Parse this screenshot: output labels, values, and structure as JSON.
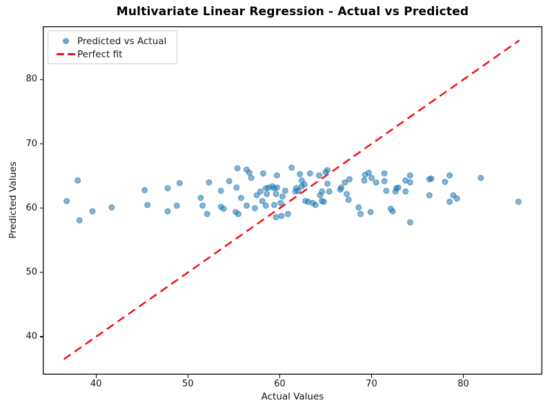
{
  "title": "Multivariate Linear Regression - Actual vs Predicted",
  "colors": {
    "scatter": "#1f77b4",
    "scatter_alpha": 0.55,
    "perfect_fit": "#f01010",
    "spine": "#000000",
    "legend_border": "#cccccc"
  },
  "chart_data": {
    "type": "scatter",
    "title": "Multivariate Linear Regression - Actual vs Predicted",
    "xlabel": "Actual Values",
    "ylabel": "Predicted Values",
    "xlim": [
      34.2,
      88.6
    ],
    "ylim": [
      34.1,
      88.3
    ],
    "x_ticks": [
      40,
      50,
      60,
      70,
      80
    ],
    "y_ticks": [
      40,
      50,
      60,
      70,
      80
    ],
    "grid": false,
    "legend_position": "upper left",
    "series": [
      {
        "name": "Predicted vs Actual",
        "kind": "scatter",
        "color": "#1f77b4",
        "alpha": 0.55,
        "marker": "circle",
        "points": [
          [
            36.8,
            61.1
          ],
          [
            38.0,
            64.3
          ],
          [
            38.2,
            58.1
          ],
          [
            39.6,
            59.5
          ],
          [
            41.7,
            60.1
          ],
          [
            45.3,
            62.8
          ],
          [
            45.6,
            60.5
          ],
          [
            47.8,
            63.1
          ],
          [
            47.8,
            59.5
          ],
          [
            48.8,
            60.4
          ],
          [
            49.1,
            63.9
          ],
          [
            51.4,
            61.6
          ],
          [
            51.6,
            60.4
          ],
          [
            52.1,
            59.1
          ],
          [
            52.3,
            64.0
          ],
          [
            53.6,
            62.7
          ],
          [
            53.6,
            60.2
          ],
          [
            53.9,
            59.9
          ],
          [
            54.5,
            64.2
          ],
          [
            55.2,
            59.4
          ],
          [
            55.3,
            63.2
          ],
          [
            55.4,
            66.2
          ],
          [
            55.5,
            59.1
          ],
          [
            55.8,
            61.6
          ],
          [
            56.4,
            66.0
          ],
          [
            56.4,
            60.4
          ],
          [
            56.7,
            65.5
          ],
          [
            56.9,
            64.7
          ],
          [
            57.3,
            60.0
          ],
          [
            57.5,
            62.0
          ],
          [
            57.9,
            62.6
          ],
          [
            58.1,
            61.1
          ],
          [
            58.2,
            65.4
          ],
          [
            58.5,
            63.1
          ],
          [
            58.5,
            60.4
          ],
          [
            58.6,
            62.2
          ],
          [
            58.8,
            63.2
          ],
          [
            59.2,
            63.4
          ],
          [
            59.4,
            63.1
          ],
          [
            59.4,
            60.5
          ],
          [
            59.6,
            62.2
          ],
          [
            59.6,
            58.6
          ],
          [
            59.7,
            65.1
          ],
          [
            59.7,
            63.2
          ],
          [
            60.1,
            60.8
          ],
          [
            60.2,
            58.8
          ],
          [
            60.3,
            61.8
          ],
          [
            60.6,
            62.7
          ],
          [
            60.9,
            59.1
          ],
          [
            61.3,
            66.3
          ],
          [
            61.7,
            62.6
          ],
          [
            61.8,
            63.1
          ],
          [
            62.0,
            62.7
          ],
          [
            62.2,
            65.3
          ],
          [
            62.4,
            64.3
          ],
          [
            62.4,
            63.4
          ],
          [
            62.7,
            63.7
          ],
          [
            62.8,
            61.1
          ],
          [
            63.1,
            61.0
          ],
          [
            63.3,
            65.4
          ],
          [
            63.6,
            60.8
          ],
          [
            63.9,
            60.5
          ],
          [
            64.3,
            65.1
          ],
          [
            64.4,
            62.0
          ],
          [
            64.6,
            62.6
          ],
          [
            64.6,
            61.1
          ],
          [
            64.8,
            61.0
          ],
          [
            65.0,
            65.6
          ],
          [
            65.2,
            65.9
          ],
          [
            65.2,
            63.8
          ],
          [
            65.4,
            62.6
          ],
          [
            66.6,
            62.9
          ],
          [
            66.7,
            63.2
          ],
          [
            67.1,
            64.0
          ],
          [
            67.3,
            62.2
          ],
          [
            67.5,
            61.3
          ],
          [
            67.6,
            64.5
          ],
          [
            68.6,
            60.1
          ],
          [
            68.8,
            59.1
          ],
          [
            69.2,
            64.3
          ],
          [
            69.3,
            65.2
          ],
          [
            69.7,
            65.5
          ],
          [
            70.0,
            64.7
          ],
          [
            70.5,
            64.0
          ],
          [
            69.9,
            59.4
          ],
          [
            71.4,
            65.4
          ],
          [
            71.4,
            64.2
          ],
          [
            71.6,
            62.7
          ],
          [
            72.1,
            59.9
          ],
          [
            72.3,
            59.5
          ],
          [
            72.6,
            62.6
          ],
          [
            72.7,
            63.1
          ],
          [
            72.9,
            63.2
          ],
          [
            73.7,
            62.6
          ],
          [
            73.7,
            64.3
          ],
          [
            74.2,
            65.1
          ],
          [
            74.2,
            64.0
          ],
          [
            74.2,
            57.8
          ],
          [
            76.3,
            64.5
          ],
          [
            76.5,
            64.6
          ],
          [
            76.3,
            62.0
          ],
          [
            78.0,
            64.1
          ],
          [
            78.5,
            65.1
          ],
          [
            78.5,
            61.0
          ],
          [
            78.9,
            62.0
          ],
          [
            79.3,
            61.5
          ],
          [
            81.9,
            64.7
          ],
          [
            86.0,
            61.0
          ]
        ]
      },
      {
        "name": "Perfect fit",
        "kind": "line",
        "style": "dashed",
        "color": "#f01010",
        "width": 2.5,
        "points": [
          [
            36.5,
            36.5
          ],
          [
            86.1,
            86.1
          ]
        ]
      }
    ]
  }
}
